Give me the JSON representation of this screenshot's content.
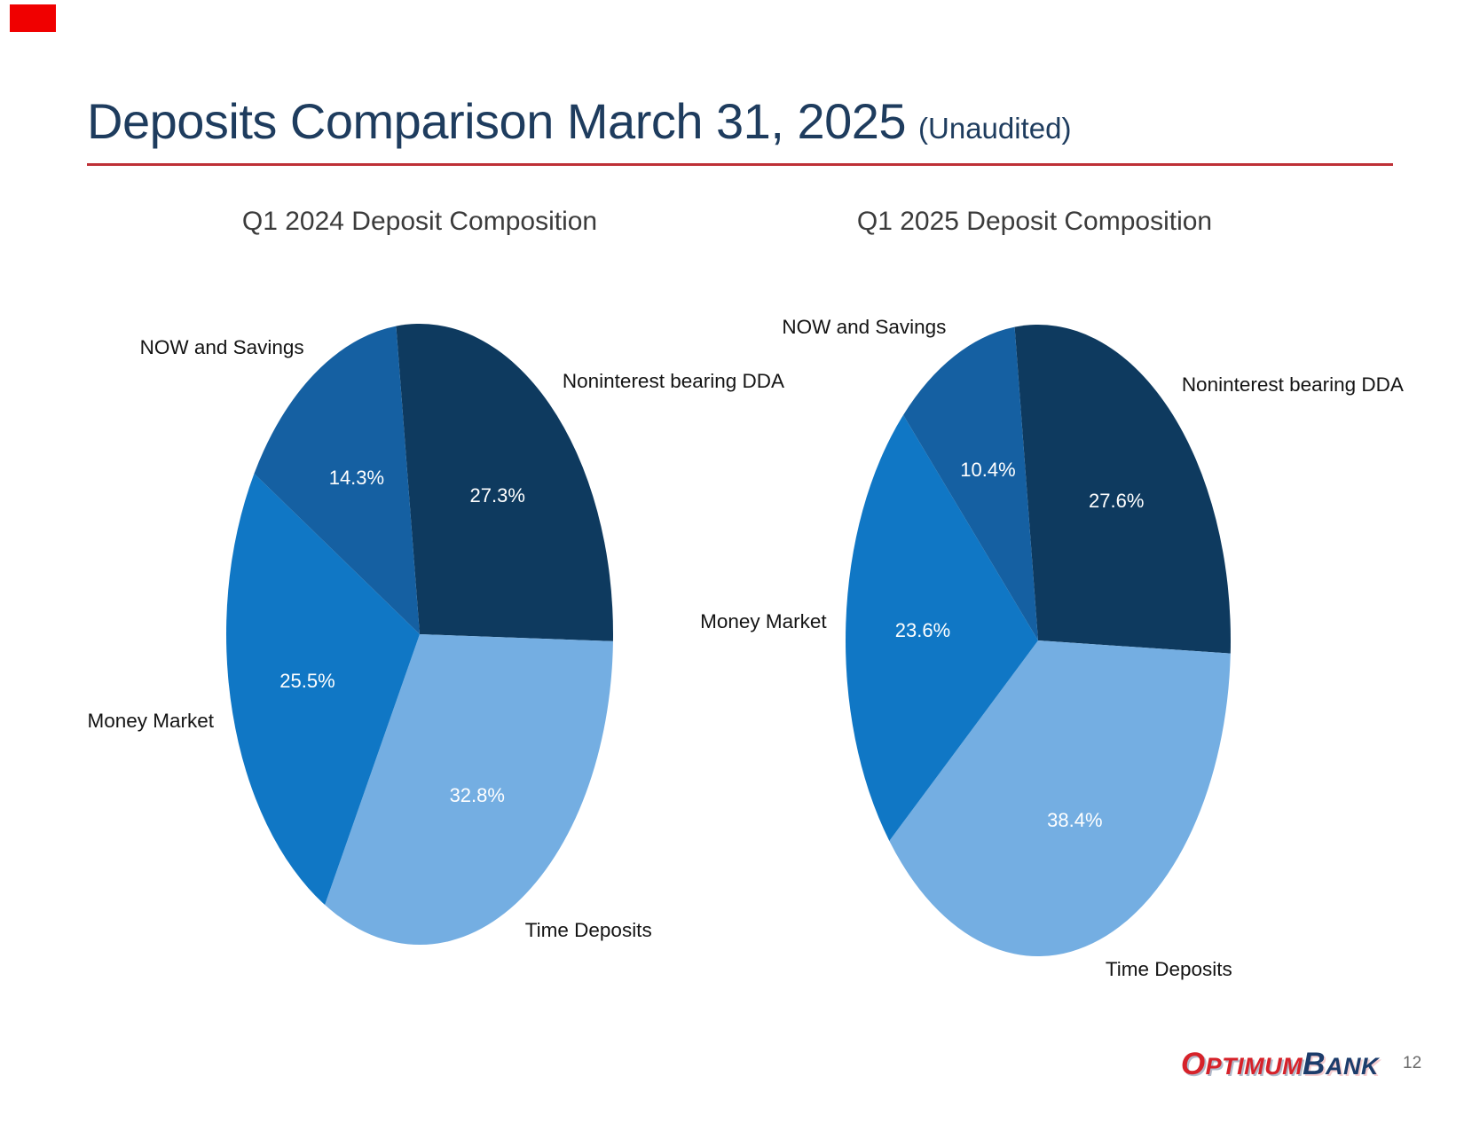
{
  "marker": {
    "color": "#F00000"
  },
  "header": {
    "title": "Deposits Comparison March 31, 2025",
    "subtitle": "(Unaudited)",
    "title_color": "#1E3C5E",
    "underline_color": "#BE3036"
  },
  "chart_data": [
    {
      "type": "pie",
      "title": "Q1 2024 Deposit Composition",
      "categories": [
        "Noninterest bearing DDA",
        "Time Deposits",
        "Money Market",
        "NOW and Savings"
      ],
      "values": [
        27.3,
        32.8,
        25.5,
        14.3
      ],
      "pct_labels": [
        "27.3%",
        "32.8%",
        "25.5%",
        "14.3%"
      ],
      "colors": [
        "#0E3A5F",
        "#74AEE2",
        "#1077C5",
        "#1560A2"
      ],
      "start_angle_deg": -7,
      "direction": "clockwise",
      "category_label_position": "outside",
      "pct_label_position": "inside"
    },
    {
      "type": "pie",
      "title": "Q1 2025 Deposit Composition",
      "categories": [
        "Noninterest bearing DDA",
        "Time Deposits",
        "Money Market",
        "NOW and Savings"
      ],
      "values": [
        27.6,
        38.4,
        23.6,
        10.4
      ],
      "pct_labels": [
        "27.6%",
        "38.4%",
        "23.6%",
        "10.4%"
      ],
      "colors": [
        "#0E3A5F",
        "#74AEE2",
        "#1077C5",
        "#1560A2"
      ],
      "start_angle_deg": -7,
      "direction": "clockwise",
      "category_label_position": "outside",
      "pct_label_position": "inside"
    }
  ],
  "footer": {
    "logo": {
      "part1": "Optimum",
      "part2": "Bank",
      "part1_color": "#D6222A",
      "part2_color": "#1C3C6B"
    },
    "page_number": "12"
  }
}
